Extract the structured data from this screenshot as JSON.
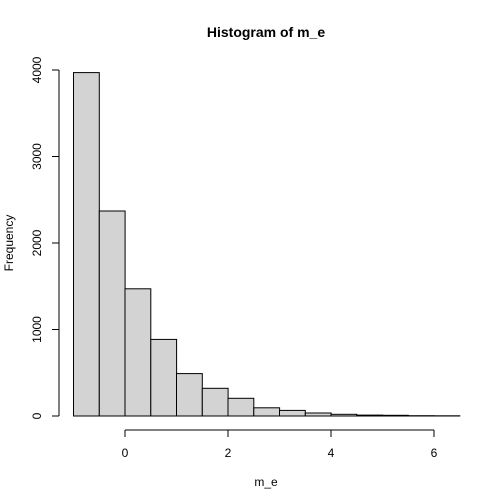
{
  "chart_data": {
    "type": "bar",
    "title": "Histogram of m_e",
    "xlabel": "m_e",
    "ylabel": "Frequency",
    "bins": [
      {
        "start": -1.0,
        "end": -0.5,
        "count": 3970
      },
      {
        "start": -0.5,
        "end": 0.0,
        "count": 2370
      },
      {
        "start": 0.0,
        "end": 0.5,
        "count": 1470
      },
      {
        "start": 0.5,
        "end": 1.0,
        "count": 885
      },
      {
        "start": 1.0,
        "end": 1.5,
        "count": 490
      },
      {
        "start": 1.5,
        "end": 2.0,
        "count": 320
      },
      {
        "start": 2.0,
        "end": 2.5,
        "count": 205
      },
      {
        "start": 2.5,
        "end": 3.0,
        "count": 95
      },
      {
        "start": 3.0,
        "end": 3.5,
        "count": 65
      },
      {
        "start": 3.5,
        "end": 4.0,
        "count": 35
      },
      {
        "start": 4.0,
        "end": 4.5,
        "count": 20
      },
      {
        "start": 4.5,
        "end": 5.0,
        "count": 10
      },
      {
        "start": 5.0,
        "end": 5.5,
        "count": 8
      },
      {
        "start": 5.5,
        "end": 6.0,
        "count": 3
      },
      {
        "start": 6.0,
        "end": 6.5,
        "count": 2
      }
    ],
    "x_ticks": [
      0,
      2,
      4,
      6
    ],
    "x_tick_labels": [
      "0",
      "2",
      "4",
      "6"
    ],
    "y_ticks": [
      0,
      1000,
      2000,
      3000,
      4000
    ],
    "y_tick_labels": [
      "0",
      "1000",
      "2000",
      "3000",
      "4000"
    ],
    "xlim": [
      -1.0,
      6.5
    ],
    "ylim": [
      0,
      4000
    ],
    "bar_fill": "#d3d3d3",
    "bar_stroke": "#000000",
    "grid": false
  }
}
